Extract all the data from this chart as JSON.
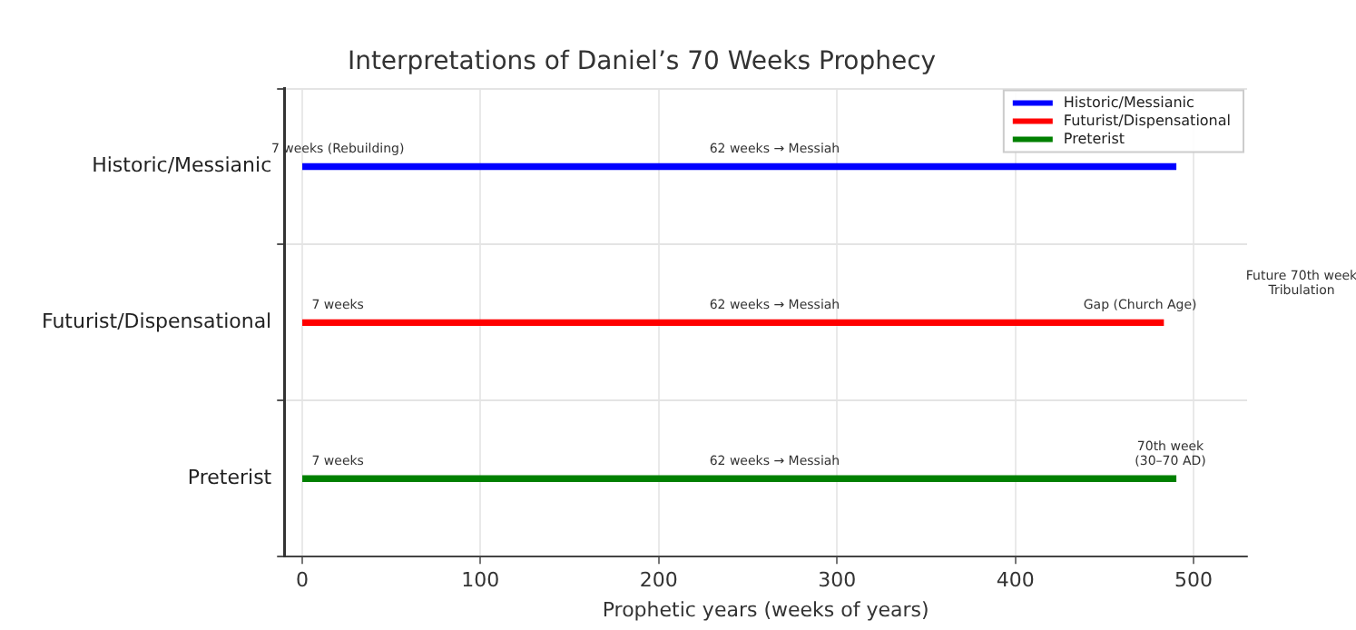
{
  "chart_data": {
    "type": "bar",
    "orientation": "horizontal",
    "title": "Interpretations of Daniel’s 70 Weeks Prophecy",
    "xlabel": "Prophetic years (weeks of years)",
    "categories": [
      "Historic/Messianic",
      "Futurist/Dispensational",
      "Preterist"
    ],
    "series": [
      {
        "name": "Historic/Messianic",
        "color": "#0000ff",
        "values": [
          490,
          null,
          null
        ]
      },
      {
        "name": "Futurist/Dispensational",
        "color": "#ff0000",
        "values": [
          null,
          483,
          null
        ]
      },
      {
        "name": "Preterist",
        "color": "#008000",
        "values": [
          null,
          null,
          490
        ]
      }
    ],
    "xlim": [
      -10,
      530
    ],
    "xticks": [
      0,
      100,
      200,
      300,
      400,
      500
    ],
    "grid": true,
    "legend": "top right",
    "annotations": [
      {
        "text": "7 weeks (Rebuilding)",
        "x": 20,
        "y": "Historic/Messianic"
      },
      {
        "text": "62 weeks → Messiah",
        "x": 265,
        "y": "Historic/Messianic"
      },
      {
        "text": "7 weeks",
        "x": 20,
        "y": "Futurist/Dispensational"
      },
      {
        "text": "62 weeks → Messiah",
        "x": 265,
        "y": "Futurist/Dispensational"
      },
      {
        "text": "Gap (Church Age)",
        "x": 470,
        "y": "Futurist/Dispensational"
      },
      "Future 70th week\nTribulation",
      {
        "text": "7 weeks",
        "x": 20,
        "y": "Preterist"
      },
      {
        "text": "62 weeks → Messiah",
        "x": 265,
        "y": "Preterist"
      },
      {
        "text": "70th week\n(30–70 AD)",
        "x": 487,
        "y": "Preterist"
      }
    ]
  }
}
